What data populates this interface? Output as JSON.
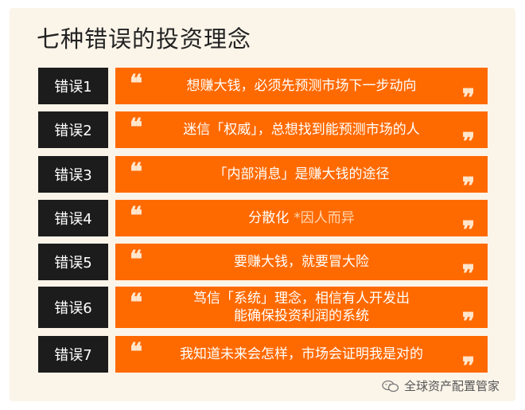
{
  "title": "七种错误的投资理念",
  "quote_open": "❝",
  "quote_close": "❞",
  "rows": [
    {
      "label": "错误1",
      "text": "想赚大钱，必须先预测市场下一步动向"
    },
    {
      "label": "错误2",
      "text": "迷信「权威」，总想找到能预测市场的人"
    },
    {
      "label": "错误3",
      "text": "「内部消息」是赚大钱的途径"
    },
    {
      "label": "错误4",
      "text": "分散化",
      "note": "*因人而异"
    },
    {
      "label": "错误5",
      "text": "要赚大钱，就要冒大险"
    },
    {
      "label": "错误6",
      "line1": "笃信「系统」理念，相信有人开发出",
      "line2": "能确保投资利润的系统"
    },
    {
      "label": "错误7",
      "text": "我知道未来会怎样，市场会证明我是对的"
    }
  ],
  "watermark": {
    "text": "全球资产配置管家",
    "icon": "wechat-icon"
  },
  "colors": {
    "accent": "#ff6a00",
    "label_bg": "#1c1c1c",
    "card_bg": "#fbf4e9"
  }
}
